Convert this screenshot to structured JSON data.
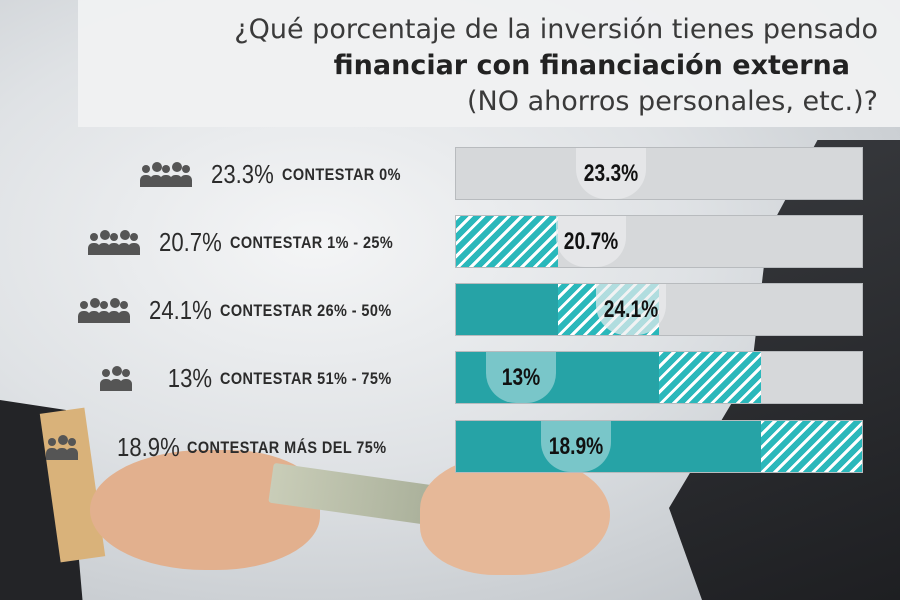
{
  "title": {
    "line1": "¿Qué porcentaje de la inversión tienes pensado",
    "line2": "financiar con financiación externa",
    "line3": "(NO ahorros personales, etc.)?"
  },
  "colors": {
    "solid": "#26a3a6",
    "hatch": "#2ab8bb",
    "track": "#d6d8da"
  },
  "chart_data": {
    "type": "bar",
    "title": "¿Qué porcentaje de la inversión tienes pensado financiar con financiación externa (NO ahorros personales, etc.)?",
    "categories": [
      "0%",
      "1% - 25%",
      "26% - 50%",
      "51% - 75%",
      "Más del 75%"
    ],
    "values": [
      23.3,
      20.7,
      24.1,
      13,
      18.9
    ],
    "rows": [
      {
        "pct": "23.3%",
        "caption": "CONTESTAR 0%",
        "value_label": "23.3%",
        "bracket_index": 0
      },
      {
        "pct": "20.7%",
        "caption": "CONTESTAR  1% - 25%",
        "value_label": "20.7%",
        "bracket_index": 1
      },
      {
        "pct": "24.1%",
        "caption": "CONTESTAR  26% - 50%",
        "value_label": "24.1%",
        "bracket_index": 2
      },
      {
        "pct": "13%",
        "caption": "CONTESTAR  51% - 75%",
        "value_label": "13%",
        "bracket_index": 3
      },
      {
        "pct": "18.9%",
        "caption": "CONTESTAR  MÁS DEL 75%",
        "value_label": "18.9%",
        "bracket_index": 4
      }
    ]
  }
}
